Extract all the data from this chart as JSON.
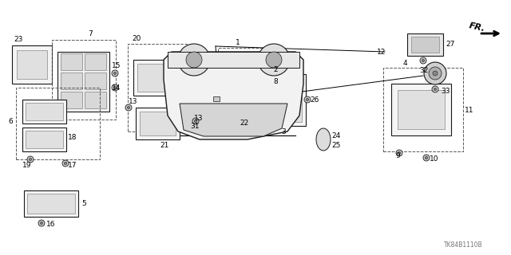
{
  "bg_color": "#ffffff",
  "ec": "#1a1a1a",
  "watermark": "TK84B1110B",
  "fr_label": "FR.",
  "figsize": [
    6.4,
    3.2
  ],
  "dpi": 100
}
